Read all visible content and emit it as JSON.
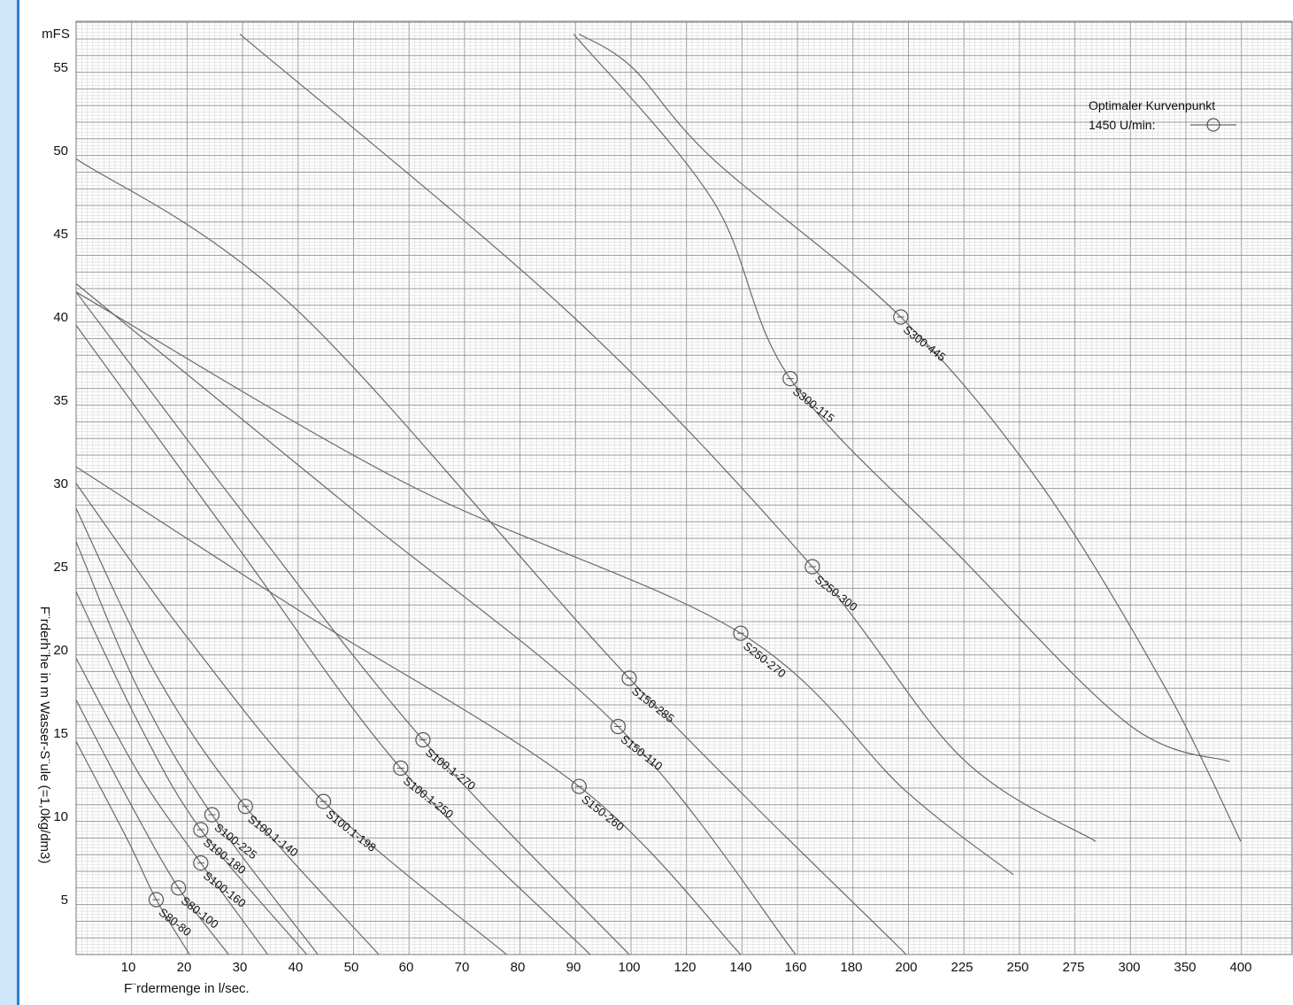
{
  "chart_data": {
    "type": "line",
    "title": "",
    "ylabel": "F¨rderh¨he in m Wasser-S¨ule (=1,0kg/dm3)",
    "xlabel": "F¨rdermenge in l/sec.",
    "y_unit_label": "mFS",
    "x_scale": "nonlinear",
    "xlim": [
      0,
      400
    ],
    "ylim": [
      1.5,
      57
    ],
    "grid": true,
    "yticks": [
      5,
      10,
      15,
      20,
      25,
      30,
      35,
      40,
      45,
      50,
      55
    ],
    "xticks": [
      10,
      20,
      30,
      40,
      50,
      60,
      70,
      80,
      90,
      100,
      120,
      140,
      160,
      180,
      200,
      225,
      250,
      275,
      300,
      350,
      400
    ],
    "legend": {
      "line1": "Optimaler Kurvenpunkt",
      "line2": "1450 U/min:",
      "position": "top-right"
    },
    "series": [
      {
        "name": "S80-80",
        "optimal": [
          15,
          5.0
        ],
        "points": [
          [
            0,
            14.5
          ],
          [
            10,
            8.5
          ],
          [
            15,
            5.0
          ],
          [
            21,
            1.5
          ]
        ]
      },
      {
        "name": "S80-100",
        "optimal": [
          19,
          5.7
        ],
        "points": [
          [
            0,
            17.0
          ],
          [
            10,
            11.0
          ],
          [
            19,
            5.7
          ],
          [
            28,
            1.5
          ]
        ]
      },
      {
        "name": "S100-160",
        "optimal": [
          23,
          7.2
        ],
        "points": [
          [
            0,
            19.5
          ],
          [
            12,
            12.5
          ],
          [
            23,
            7.2
          ],
          [
            35,
            1.5
          ]
        ]
      },
      {
        "name": "S100-180",
        "optimal": [
          23,
          9.2
        ],
        "points": [
          [
            0,
            23.5
          ],
          [
            12,
            15.5
          ],
          [
            23,
            9.2
          ],
          [
            42,
            1.5
          ]
        ]
      },
      {
        "name": "S100-225",
        "optimal": [
          25,
          10.1
        ],
        "points": [
          [
            0,
            26.5
          ],
          [
            12,
            17.5
          ],
          [
            25,
            10.1
          ],
          [
            44,
            1.5
          ]
        ]
      },
      {
        "name": "S100.1-140",
        "optimal": [
          31,
          10.6
        ],
        "points": [
          [
            0,
            28.5
          ],
          [
            15,
            18.5
          ],
          [
            31,
            10.6
          ],
          [
            55,
            1.5
          ]
        ]
      },
      {
        "name": "S100.1-198",
        "optimal": [
          45,
          10.9
        ],
        "points": [
          [
            0,
            30.0
          ],
          [
            20,
            21.0
          ],
          [
            45,
            10.9
          ],
          [
            78,
            1.5
          ]
        ]
      },
      {
        "name": "S100.1-250",
        "optimal": [
          59,
          12.9
        ],
        "points": [
          [
            0,
            39.5
          ],
          [
            30,
            26.0
          ],
          [
            59,
            12.9
          ],
          [
            93,
            1.5
          ]
        ]
      },
      {
        "name": "S100.1-270",
        "optimal": [
          63,
          14.6
        ],
        "points": [
          [
            0,
            41.5
          ],
          [
            30,
            28.5
          ],
          [
            63,
            14.6
          ],
          [
            100,
            1.5
          ]
        ]
      },
      {
        "name": "S150-260",
        "optimal": [
          91,
          11.8
        ],
        "points": [
          [
            0,
            31.0
          ],
          [
            40,
            22.5
          ],
          [
            91,
            11.8
          ],
          [
            140,
            1.5
          ]
        ]
      },
      {
        "name": "S150-110",
        "optimal": [
          98,
          15.4
        ],
        "points": [
          [
            0,
            42.0
          ],
          [
            50,
            28.5
          ],
          [
            98,
            15.4
          ],
          [
            160,
            1.5
          ]
        ]
      },
      {
        "name": "S150-285",
        "optimal": [
          100,
          18.3
        ],
        "points": [
          [
            0,
            49.5
          ],
          [
            40,
            40.5
          ],
          [
            100,
            18.3
          ],
          [
            200,
            1.5
          ]
        ]
      },
      {
        "name": "S250-270",
        "optimal": [
          140,
          21.0
        ],
        "points": [
          [
            0,
            41.5
          ],
          [
            60,
            30.0
          ],
          [
            140,
            21.0
          ],
          [
            200,
            11.5
          ],
          [
            248,
            6.5
          ]
        ]
      },
      {
        "name": "S250-300",
        "optimal": [
          166,
          25.0
        ],
        "points": [
          [
            30,
            57
          ],
          [
            90,
            40.0
          ],
          [
            166,
            25.0
          ],
          [
            225,
            13.5
          ],
          [
            285,
            8.5
          ]
        ]
      },
      {
        "name": "S300-115",
        "optimal": [
          158,
          36.3
        ],
        "points": [
          [
            90,
            57
          ],
          [
            130,
            47.0
          ],
          [
            158,
            36.3
          ],
          [
            225,
            25.5
          ],
          [
            300,
            15.5
          ],
          [
            390,
            13.3
          ]
        ]
      },
      {
        "name": "S300-445",
        "optimal": [
          198,
          40.0
        ],
        "points": [
          [
            91,
            57
          ],
          [
            101,
            55.0
          ],
          [
            130,
            49.5
          ],
          [
            198,
            40.0
          ],
          [
            260,
            30.0
          ],
          [
            330,
            18.0
          ],
          [
            400,
            8.5
          ]
        ]
      }
    ]
  }
}
